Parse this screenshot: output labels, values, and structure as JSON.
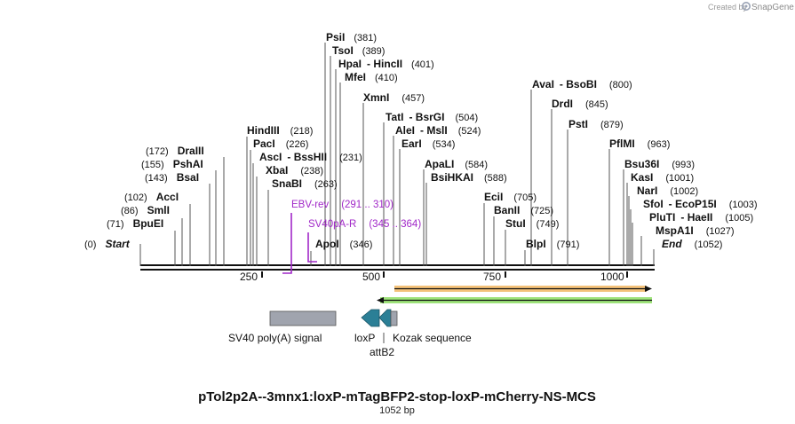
{
  "branding": {
    "created_by": "Created by",
    "product": "SnapGene"
  },
  "map": {
    "title": "pTol2p2A--3mnx1:loxP-mTagBFP2-stop-loxP-mCherry-NS-MCS",
    "length_label": "1052 bp",
    "length_bp": 1052
  },
  "ruler": {
    "ticks": [
      "250",
      "500",
      "750",
      "1000"
    ]
  },
  "colors": {
    "primer": "#a128c8",
    "feature_gray": "#a0a4ae",
    "feature_teal": "#2b7f96",
    "orf_orange": "#f0a93e",
    "orf_green": "#8ee068"
  },
  "sites": [
    {
      "name": "PsiI",
      "pos": "(381)"
    },
    {
      "name": "TsoI",
      "pos": "(389)"
    },
    {
      "name": "HpaI",
      "iso": "HincII",
      "pos": "(401)"
    },
    {
      "name": "MfeI",
      "pos": "(410)"
    },
    {
      "name": "XmnI",
      "pos": "(457)"
    },
    {
      "name": "TatI",
      "iso": "BsrGI",
      "pos": "(504)"
    },
    {
      "name": "AleI",
      "iso": "MslI",
      "pos": "(524)"
    },
    {
      "name": "EarI",
      "pos": "(534)"
    },
    {
      "name": "ApaLI",
      "pos": "(584)"
    },
    {
      "name": "BsiHKAI",
      "pos": "(588)"
    },
    {
      "name": "HindIII",
      "pos": "(218)"
    },
    {
      "name": "PacI",
      "pos": "(226)"
    },
    {
      "name": "AscI",
      "iso": "BssHII",
      "pos": "(231)"
    },
    {
      "name": "XbaI",
      "pos": "(238)"
    },
    {
      "name": "SnaBI",
      "pos": "(263)"
    },
    {
      "name": "DraIII",
      "pos": "(172)"
    },
    {
      "name": "PshAI",
      "pos": "(155)"
    },
    {
      "name": "BsaI",
      "pos": "(143)"
    },
    {
      "name": "AccI",
      "pos": "(102)"
    },
    {
      "name": "SmlI",
      "pos": "(86)"
    },
    {
      "name": "BpuEI",
      "pos": "(71)"
    },
    {
      "name": "Start",
      "pos": "(0)"
    },
    {
      "name": "ApoI",
      "pos": "(346)"
    },
    {
      "name": "AvaI",
      "iso": "BsoBI",
      "pos": "(800)"
    },
    {
      "name": "DrdI",
      "pos": "(845)"
    },
    {
      "name": "PstI",
      "pos": "(879)"
    },
    {
      "name": "PflMI",
      "pos": "(963)"
    },
    {
      "name": "Bsu36I",
      "pos": "(993)"
    },
    {
      "name": "KasI",
      "pos": "(1001)"
    },
    {
      "name": "NarI",
      "pos": "(1002)"
    },
    {
      "name": "SfoI",
      "iso": "EcoP15I",
      "pos": "(1003)"
    },
    {
      "name": "PluTI",
      "iso": "HaeII",
      "pos": "(1005)"
    },
    {
      "name": "MspA1I",
      "pos": "(1027)"
    },
    {
      "name": "End",
      "pos": "(1052)"
    },
    {
      "name": "EciI",
      "pos": "(705)"
    },
    {
      "name": "BanII",
      "pos": "(725)"
    },
    {
      "name": "StuI",
      "pos": "(749)"
    },
    {
      "name": "BlpI",
      "pos": "(791)"
    }
  ],
  "primers": [
    {
      "name": "EBV-rev",
      "range": "(291 .. 310)"
    },
    {
      "name": "SV40pA-R",
      "range": "(345 .. 364)"
    }
  ],
  "features": [
    {
      "name": "SV40 poly(A) signal"
    },
    {
      "name": "loxP"
    },
    {
      "name": "Kozak sequence"
    },
    {
      "name": "attB2"
    }
  ]
}
